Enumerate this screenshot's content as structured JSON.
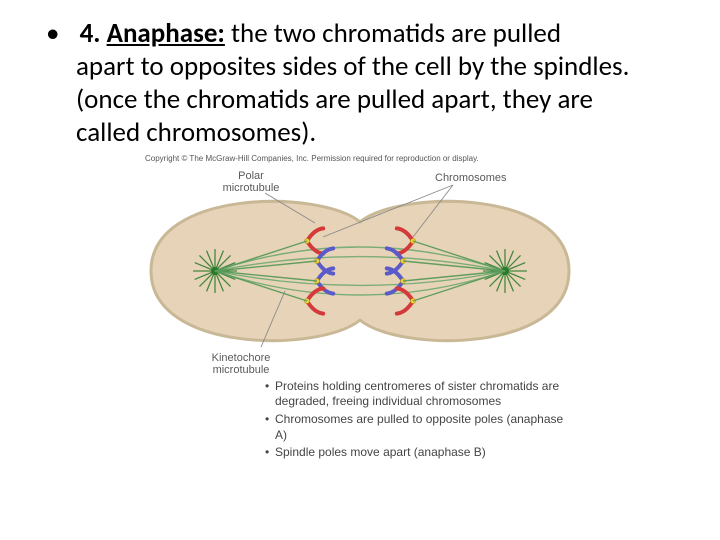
{
  "main": {
    "number": "4.",
    "term": "Anaphase:",
    "rest_line1": "  the two chromatids are pulled",
    "rest_line2": "apart to opposites sides of the cell by the spindles.  (once the chromatids are pulled apart, they are called chromosomes)."
  },
  "figure": {
    "copyright": "Copyright © The McGraw-Hill Companies, Inc. Permission required for reproduction or display.",
    "labels": {
      "polar": "Polar\nmicrotubule",
      "chromosomes": "Chromosomes",
      "kinetochore": "Kinetochore\nmicrotubule"
    },
    "caption": [
      "Proteins holding centromeres of sister chromatids are degraded, freeing individual chromosomes",
      "Chromosomes are pulled to opposite poles (anaphase A)",
      "Spindle poles move apart (anaphase B)"
    ],
    "colors": {
      "cell_fill": "#e7d4b8",
      "cell_stroke": "#c9b896",
      "spindle": "#5a9b5a",
      "microtubule": "#6fa86f",
      "chromR": "#d43a3a",
      "chromB": "#5a5ac8",
      "centrosome": "#2a7a2a",
      "label": "#5a5a5a",
      "leader": "#888888"
    }
  }
}
